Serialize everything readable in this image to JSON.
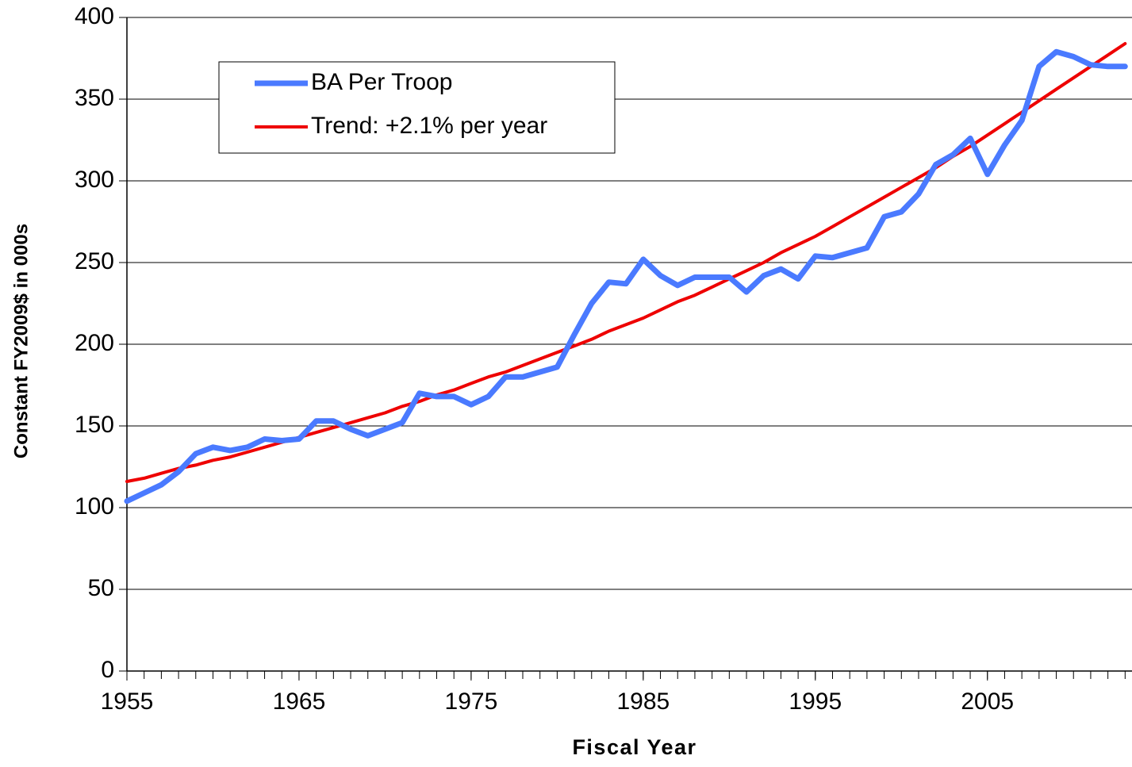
{
  "chart_data": {
    "type": "line",
    "xlabel": "Fiscal Year",
    "ylabel": "Constant FY2009$ in 000s",
    "x": [
      1955,
      1956,
      1957,
      1958,
      1959,
      1960,
      1961,
      1962,
      1963,
      1964,
      1965,
      1966,
      1967,
      1968,
      1969,
      1970,
      1971,
      1972,
      1973,
      1974,
      1975,
      1976,
      1977,
      1978,
      1979,
      1980,
      1981,
      1982,
      1983,
      1984,
      1985,
      1986,
      1987,
      1988,
      1989,
      1990,
      1991,
      1992,
      1993,
      1994,
      1995,
      1996,
      1997,
      1998,
      1999,
      2000,
      2001,
      2002,
      2003,
      2004,
      2005,
      2006,
      2007,
      2008,
      2009,
      2010,
      2011,
      2012,
      2013
    ],
    "series": [
      {
        "name": "BA Per Troop",
        "color": "#4a7aff",
        "width": 7,
        "values": [
          104,
          109,
          114,
          122,
          133,
          137,
          135,
          137,
          142,
          141,
          142,
          153,
          153,
          148,
          144,
          148,
          152,
          170,
          168,
          168,
          163,
          168,
          180,
          180,
          183,
          186,
          206,
          225,
          238,
          237,
          252,
          242,
          236,
          241,
          241,
          241,
          232,
          242,
          246,
          240,
          254,
          253,
          256,
          259,
          278,
          281,
          292,
          310,
          316,
          326,
          304,
          322,
          337,
          370,
          379,
          376,
          371,
          370,
          370
        ]
      },
      {
        "name": "Trend: +2.1% per year",
        "color": "#ee0000",
        "width": 4,
        "values": [
          116,
          118,
          121,
          124,
          126,
          129,
          131,
          134,
          137,
          140,
          143,
          146,
          149,
          152,
          155,
          158,
          162,
          165,
          169,
          172,
          176,
          180,
          183,
          187,
          191,
          195,
          199,
          203,
          208,
          212,
          216,
          221,
          226,
          230,
          235,
          240,
          245,
          250,
          256,
          261,
          266,
          272,
          278,
          284,
          290,
          296,
          302,
          308,
          315,
          321,
          328,
          335,
          342,
          349,
          356,
          363,
          370,
          377,
          384
        ]
      }
    ],
    "xlim": [
      1955,
      2013.4
    ],
    "xticks": [
      1955,
      1965,
      1975,
      1985,
      1995,
      2005
    ],
    "xminorticks": [
      1955,
      1956,
      1957,
      1958,
      1959,
      1960,
      1961,
      1962,
      1963,
      1964,
      1965,
      1966,
      1967,
      1968,
      1969,
      1970,
      1971,
      1972,
      1973,
      1974,
      1975,
      1976,
      1977,
      1978,
      1979,
      1980,
      1981,
      1982,
      1983,
      1984,
      1985,
      1986,
      1987,
      1988,
      1989,
      1990,
      1991,
      1992,
      1993,
      1994,
      1995,
      1996,
      1997,
      1998,
      1999,
      2000,
      2001,
      2002,
      2003,
      2004,
      2005,
      2006,
      2007,
      2008,
      2009,
      2010,
      2011,
      2012,
      2013
    ],
    "ylim": [
      0,
      400
    ],
    "yticks": [
      0,
      50,
      100,
      150,
      200,
      250,
      300,
      350,
      400
    ],
    "grid": true,
    "legend": "upper left"
  }
}
